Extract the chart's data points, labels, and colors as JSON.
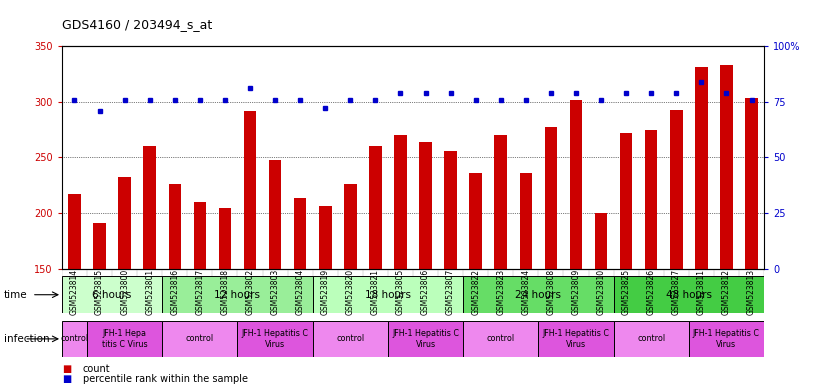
{
  "title": "GDS4160 / 203494_s_at",
  "samples": [
    "GSM523814",
    "GSM523815",
    "GSM523800",
    "GSM523801",
    "GSM523816",
    "GSM523817",
    "GSM523818",
    "GSM523802",
    "GSM523803",
    "GSM523804",
    "GSM523819",
    "GSM523820",
    "GSM523821",
    "GSM523805",
    "GSM523806",
    "GSM523807",
    "GSM523822",
    "GSM523823",
    "GSM523824",
    "GSM523808",
    "GSM523809",
    "GSM523810",
    "GSM523825",
    "GSM523826",
    "GSM523827",
    "GSM523811",
    "GSM523812",
    "GSM523813"
  ],
  "counts": [
    217,
    191,
    232,
    260,
    226,
    210,
    205,
    292,
    248,
    214,
    206,
    226,
    260,
    270,
    264,
    256,
    236,
    270,
    236,
    277,
    302,
    200,
    272,
    275,
    293,
    331,
    333,
    303
  ],
  "percentile_ranks": [
    76,
    71,
    76,
    76,
    76,
    76,
    76,
    81,
    76,
    76,
    72,
    76,
    76,
    79,
    79,
    79,
    76,
    76,
    76,
    79,
    79,
    76,
    79,
    79,
    79,
    84,
    79,
    76
  ],
  "bar_color": "#cc0000",
  "dot_color": "#0000cc",
  "ylim_left": [
    150,
    350
  ],
  "ylim_right": [
    0,
    100
  ],
  "yticks_left": [
    150,
    200,
    250,
    300,
    350
  ],
  "yticks_right": [
    0,
    25,
    50,
    75,
    100
  ],
  "grid_lines": [
    200,
    250,
    300
  ],
  "time_groups": [
    {
      "label": "6 hours",
      "start": 0,
      "end": 4,
      "color": "#ccffcc"
    },
    {
      "label": "12 hours",
      "start": 4,
      "end": 10,
      "color": "#99ee99"
    },
    {
      "label": "18 hours",
      "start": 10,
      "end": 16,
      "color": "#bbffbb"
    },
    {
      "label": "24 hours",
      "start": 16,
      "end": 22,
      "color": "#66dd66"
    },
    {
      "label": "48 hours",
      "start": 22,
      "end": 28,
      "color": "#44cc44"
    }
  ],
  "infection_groups": [
    {
      "label": "control",
      "start": 0,
      "end": 1,
      "color": "#ee88ee"
    },
    {
      "label": "JFH-1 Hepa\ntitis C Virus",
      "start": 1,
      "end": 4,
      "color": "#dd55dd"
    },
    {
      "label": "control",
      "start": 4,
      "end": 7,
      "color": "#ee88ee"
    },
    {
      "label": "JFH-1 Hepatitis C\nVirus",
      "start": 7,
      "end": 10,
      "color": "#dd55dd"
    },
    {
      "label": "control",
      "start": 10,
      "end": 13,
      "color": "#ee88ee"
    },
    {
      "label": "JFH-1 Hepatitis C\nVirus",
      "start": 13,
      "end": 16,
      "color": "#dd55dd"
    },
    {
      "label": "control",
      "start": 16,
      "end": 19,
      "color": "#ee88ee"
    },
    {
      "label": "JFH-1 Hepatitis C\nVirus",
      "start": 19,
      "end": 22,
      "color": "#dd55dd"
    },
    {
      "label": "control",
      "start": 22,
      "end": 25,
      "color": "#ee88ee"
    },
    {
      "label": "JFH-1 Hepatitis C\nVirus",
      "start": 25,
      "end": 28,
      "color": "#dd55dd"
    }
  ],
  "plot_bg": "#ffffff",
  "xtick_bg": "#cccccc",
  "fig_bg": "#ffffff",
  "title_fontsize": 9,
  "bar_width": 0.5
}
